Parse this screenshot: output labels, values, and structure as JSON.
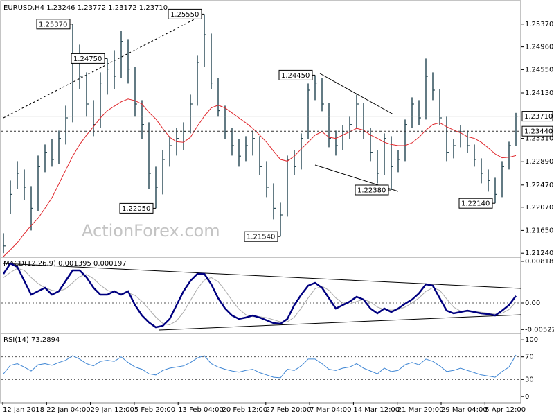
{
  "header": "EURUSD,H4  1.23246 1.23772 1.23172 1.23710",
  "watermark": "ActionForex.com",
  "x_labels": [
    "12 Jan 2018",
    "22 Jan 04:00",
    "29 Jan 12:00",
    "5 Feb 20:00",
    "13 Feb 04:00",
    "20 Feb 12:00",
    "27 Feb 20:00",
    "7 Mar 04:00",
    "14 Mar 12:00",
    "21 Mar 20:00",
    "29 Mar 04:00",
    "5 Apr 12:00"
  ],
  "chart_data": [
    {
      "type": "ohlc",
      "color": "#2f4f5a",
      "ylim": [
        1.2118,
        1.2578
      ],
      "yticks": [
        {
          "value": 1.2537,
          "label": "1.25370"
        },
        {
          "value": 1.2496,
          "label": "1.24960"
        },
        {
          "value": 1.2455,
          "label": "1.24550"
        },
        {
          "value": 1.2413,
          "label": "1.24130"
        },
        {
          "value": 1.2331,
          "label": "1.23310"
        },
        {
          "value": 1.2289,
          "label": "1.22890"
        },
        {
          "value": 1.2247,
          "label": "1.22470"
        },
        {
          "value": 1.2207,
          "label": "1.22070"
        },
        {
          "value": 1.2165,
          "label": "1.21650"
        },
        {
          "value": 1.2124,
          "label": "1.21240"
        }
      ],
      "high": [
        1.216,
        1.2255,
        1.229,
        1.2275,
        1.2245,
        1.23,
        1.232,
        1.233,
        1.2345,
        1.239,
        1.2537,
        1.25,
        1.245,
        1.24,
        1.245,
        1.2475,
        1.249,
        1.2525,
        1.251,
        1.246,
        1.24,
        1.236,
        1.228,
        1.231,
        1.2335,
        1.235,
        1.236,
        1.241,
        1.248,
        1.2555,
        1.252,
        1.244,
        1.239,
        1.235,
        1.233,
        1.2335,
        1.2345,
        1.2335,
        1.229,
        1.225,
        1.2215,
        1.23,
        1.231,
        1.234,
        1.243,
        1.2445,
        1.244,
        1.2395,
        1.2345,
        1.2355,
        1.237,
        1.241,
        1.2395,
        1.235,
        1.231,
        1.234,
        1.2335,
        1.231,
        1.2365,
        1.2405,
        1.24,
        1.2475,
        1.245,
        1.242,
        1.237,
        1.233,
        1.2355,
        1.2345,
        1.232,
        1.2295,
        1.2275,
        1.226,
        1.229,
        1.2325,
        1.2377
      ],
      "low": [
        1.2124,
        1.2195,
        1.224,
        1.222,
        1.2165,
        1.22,
        1.227,
        1.228,
        1.2285,
        1.232,
        1.236,
        1.242,
        1.237,
        1.2335,
        1.235,
        1.241,
        1.242,
        1.244,
        1.243,
        1.237,
        1.233,
        1.224,
        1.2205,
        1.223,
        1.228,
        1.23,
        1.231,
        1.234,
        1.239,
        1.246,
        1.242,
        1.237,
        1.233,
        1.23,
        1.228,
        1.229,
        1.23,
        1.2265,
        1.2225,
        1.2185,
        1.2154,
        1.219,
        1.2265,
        1.2275,
        1.233,
        1.24,
        1.238,
        1.2315,
        1.23,
        1.231,
        1.233,
        1.235,
        1.233,
        1.229,
        1.225,
        1.2265,
        1.2238,
        1.227,
        1.229,
        1.235,
        1.2355,
        1.2365,
        1.24,
        1.2355,
        1.229,
        1.2295,
        1.2315,
        1.2305,
        1.228,
        1.225,
        1.2235,
        1.2214,
        1.2225,
        1.2275,
        1.2317
      ],
      "close": [
        1.2137,
        1.223,
        1.2268,
        1.2243,
        1.2205,
        1.228,
        1.2306,
        1.2293,
        1.2331,
        1.2368,
        1.2468,
        1.2443,
        1.2393,
        1.2356,
        1.2431,
        1.2456,
        1.2443,
        1.2506,
        1.2456,
        1.2393,
        1.2356,
        1.2268,
        1.2243,
        1.2293,
        1.2318,
        1.2331,
        1.2343,
        1.2393,
        1.2468,
        1.2518,
        1.2431,
        1.2381,
        1.2343,
        1.2318,
        1.2299,
        1.2318,
        1.2331,
        1.228,
        1.2243,
        1.2205,
        1.2193,
        1.2293,
        1.228,
        1.2331,
        1.2418,
        1.2431,
        1.2393,
        1.2331,
        1.2318,
        1.2343,
        1.2356,
        1.2393,
        1.2343,
        1.2306,
        1.2268,
        1.2331,
        1.228,
        1.2293,
        1.2356,
        1.2393,
        1.2368,
        1.2443,
        1.2418,
        1.2368,
        1.2306,
        1.2318,
        1.2343,
        1.2318,
        1.2293,
        1.2268,
        1.2255,
        1.223,
        1.228,
        1.2318,
        1.2371
      ],
      "overlay": {
        "color": "#e0262b",
        "values": [
          1.2118,
          1.213,
          1.2143,
          1.2159,
          1.2174,
          1.2187,
          1.2205,
          1.2224,
          1.2249,
          1.2274,
          1.2299,
          1.232,
          1.2337,
          1.2352,
          1.2368,
          1.2381,
          1.2389,
          1.2397,
          1.2402,
          1.2399,
          1.2393,
          1.2378,
          1.2366,
          1.2349,
          1.2333,
          1.2325,
          1.2324,
          1.2333,
          1.2353,
          1.2371,
          1.2386,
          1.2391,
          1.2386,
          1.2377,
          1.2368,
          1.2359,
          1.2349,
          1.2337,
          1.2324,
          1.2308,
          1.2293,
          1.229,
          1.2299,
          1.2312,
          1.2324,
          1.2337,
          1.2343,
          1.2333,
          1.2331,
          1.2337,
          1.2343,
          1.2349,
          1.2346,
          1.2337,
          1.2331,
          1.2324,
          1.232,
          1.2318,
          1.2318,
          1.2323,
          1.2333,
          1.2346,
          1.2356,
          1.2359,
          1.2352,
          1.2346,
          1.2341,
          1.2334,
          1.2331,
          1.2324,
          1.2314,
          1.2303,
          1.2296,
          1.2297,
          1.23
        ]
      },
      "levels": [
        {
          "value": 1.2371,
          "label": "1.23710",
          "style": "solid"
        },
        {
          "value": 1.2344,
          "label": "1.23440",
          "style": "dashed"
        }
      ],
      "annotations": [
        {
          "value": 1.2537,
          "label": "1.25370"
        },
        {
          "value": 1.2555,
          "label": "1.25550"
        },
        {
          "value": 1.2205,
          "label": "1.22050"
        },
        {
          "value": 1.2154,
          "label": "1.21540"
        },
        {
          "value": 1.2445,
          "label": "1.24450"
        },
        {
          "value": 1.2238,
          "label": "1.22380"
        },
        {
          "value": 1.2475,
          "label": "1.24750"
        },
        {
          "value": 1.2214,
          "label": "1.22140"
        }
      ]
    },
    {
      "type": "line",
      "title": "MACD(12,26,9) 0.001395 0.000197",
      "ylim": [
        -0.00586,
        0.00886
      ],
      "yticks": [
        0.008182,
        {
          "value": 0,
          "label": "0.00"
        },
        -0.005223
      ],
      "levels": [
        0
      ],
      "series": [
        {
          "color": "#aaaaaa",
          "width": 1,
          "values": [
            0.005,
            0.006,
            0.0068,
            0.0064,
            0.005,
            0.0038,
            0.003,
            0.0025,
            0.0023,
            0.0028,
            0.004,
            0.0052,
            0.0056,
            0.0048,
            0.0035,
            0.0025,
            0.002,
            0.0019,
            0.002,
            0.0015,
            0.0003,
            -0.0012,
            -0.0028,
            -0.004,
            -0.0043,
            -0.0035,
            -0.0018,
            0.0005,
            0.0028,
            0.0045,
            0.005,
            0.0042,
            0.0025,
            0.0005,
            -0.0012,
            -0.0023,
            -0.0027,
            -0.0027,
            -0.0029,
            -0.0033,
            -0.0037,
            -0.0037,
            -0.0028,
            -0.001,
            0.001,
            0.0028,
            0.0033,
            0.0025,
            0.001,
            0.0,
            -0.0002,
            0.0003,
            0.0007,
            0.0002,
            -0.0008,
            -0.0013,
            -0.0014,
            -0.0013,
            -0.0008,
            0.0,
            0.001,
            0.0023,
            0.003,
            0.0025,
            0.0008,
            -0.0008,
            -0.0016,
            -0.0017,
            -0.0017,
            -0.0018,
            -0.002,
            -0.0022,
            -0.002,
            -0.0013,
            0.0002
          ]
        },
        {
          "color": "#000080",
          "width": 2.5,
          "values": [
            0.00573,
            0.00777,
            0.00709,
            0.00436,
            0.00164,
            0.00232,
            0.003,
            0.00164,
            0.00232,
            0.00436,
            0.00641,
            0.00641,
            0.00505,
            0.003,
            0.00164,
            0.00164,
            0.00232,
            0.00164,
            0.00232,
            -0.00041,
            -0.00245,
            -0.00382,
            -0.00477,
            -0.0045,
            -0.00314,
            -0.00041,
            0.00232,
            0.00436,
            0.00573,
            0.00573,
            0.00368,
            0.00095,
            -0.00109,
            -0.00245,
            -0.00314,
            -0.00286,
            -0.00245,
            -0.00286,
            -0.00341,
            -0.00395,
            -0.00409,
            -0.00314,
            -0.00041,
            0.00164,
            0.00341,
            0.00395,
            0.003,
            0.00095,
            -0.00109,
            -0.00041,
            0.00027,
            0.00123,
            0.00068,
            -0.00109,
            -0.00205,
            -0.00109,
            -0.00177,
            -0.00109,
            -0.00014,
            0.00068,
            0.00191,
            0.00368,
            0.00341,
            0.00095,
            -0.0015,
            -0.00205,
            -0.00177,
            -0.0015,
            -0.00177,
            -0.00205,
            -0.00218,
            -0.00245,
            -0.0015,
            -0.00041,
            0.0014
          ]
        }
      ]
    },
    {
      "type": "line",
      "title": "RSI(14) 73.2894",
      "ylim": [
        -10,
        110
      ],
      "yticks": [
        100,
        70,
        30,
        0
      ],
      "levels": [
        70,
        30
      ],
      "series": [
        {
          "color": "#3f86d4",
          "width": 1,
          "values": [
            40,
            55,
            58,
            52,
            45,
            56,
            58,
            55,
            60,
            64,
            72,
            66,
            58,
            54,
            62,
            64,
            62,
            70,
            60,
            52,
            48,
            40,
            38,
            46,
            50,
            52,
            54,
            60,
            68,
            72,
            58,
            52,
            48,
            45,
            43,
            46,
            48,
            42,
            38,
            34,
            33,
            48,
            46,
            54,
            66,
            66,
            58,
            48,
            46,
            50,
            52,
            58,
            50,
            45,
            40,
            50,
            44,
            46,
            56,
            60,
            56,
            66,
            62,
            54,
            44,
            46,
            50,
            46,
            42,
            38,
            36,
            34,
            44,
            52,
            73.2894
          ]
        }
      ]
    }
  ]
}
